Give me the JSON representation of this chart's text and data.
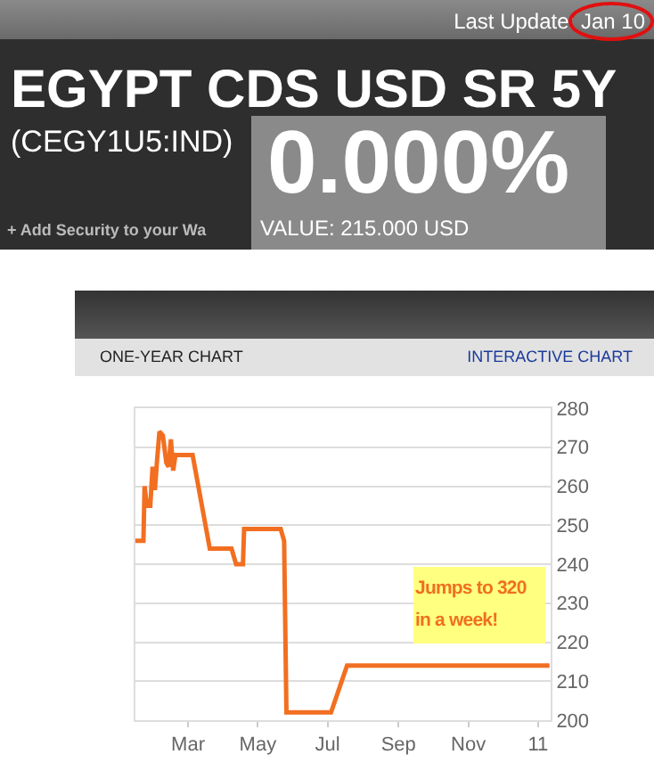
{
  "chart_data": {
    "type": "line",
    "title": "EGYPT CDS USD SR 5Y",
    "subtitle": "(CEGY1U5:IND)",
    "annotations": [
      "Last Update: Jan 10",
      "0.000%",
      "VALUE: 215.000 USD",
      "+ Add Security to your Wa",
      "ONE-YEAR CHART",
      "INTERACTIVE CHART",
      "Jumps to 320 in a week!"
    ],
    "x": [
      "2010-01-14",
      "2010-01-21",
      "2010-01-22",
      "2010-01-24",
      "2010-01-27",
      "2010-01-29",
      "2010-01-31",
      "2010-02-02",
      "2010-02-04",
      "2010-02-07",
      "2010-02-10",
      "2010-02-12",
      "2010-02-14",
      "2010-02-16",
      "2010-02-18",
      "2010-03-05",
      "2010-03-20",
      "2010-04-08",
      "2010-04-12",
      "2010-04-18",
      "2010-04-19",
      "2010-05-21",
      "2010-05-24",
      "2010-05-26",
      "2010-07-04",
      "2010-07-18",
      "2011-01-11"
    ],
    "series": [
      {
        "color": "#f26f21",
        "values": [
          246,
          246,
          260,
          255,
          255,
          265,
          259,
          267,
          274,
          273,
          266,
          265,
          272,
          264,
          268,
          268,
          244,
          244,
          240,
          240,
          249,
          249,
          246,
          202,
          202,
          214,
          214
        ]
      }
    ],
    "xlim": [
      "2010-01-14",
      "2011-01-12"
    ],
    "xticks": [
      {
        "value": "2010-03-01",
        "label": "Mar"
      },
      {
        "value": "2010-05-01",
        "label": "May"
      },
      {
        "value": "2010-07-01",
        "label": "Jul"
      },
      {
        "value": "2010-09-01",
        "label": "Sep"
      },
      {
        "value": "2010-11-01",
        "label": "Nov"
      },
      {
        "value": "2011-01-01",
        "label": "11"
      }
    ],
    "ylim": [
      200,
      280
    ],
    "yticks": [
      200,
      210,
      220,
      230,
      240,
      250,
      260,
      270,
      280
    ],
    "grid": "y",
    "marker": "none",
    "line_style": "solid"
  }
}
